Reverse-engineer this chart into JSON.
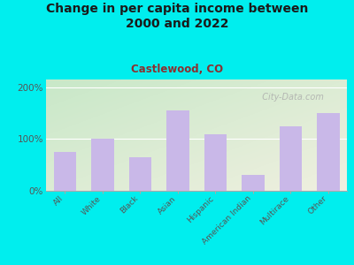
{
  "title": "Change in per capita income between\n2000 and 2022",
  "subtitle": "Castlewood, CO",
  "categories": [
    "All",
    "White",
    "Black",
    "Asian",
    "Hispanic",
    "American Indian",
    "Multirace",
    "Other"
  ],
  "values": [
    75,
    100,
    65,
    155,
    110,
    30,
    125,
    150
  ],
  "bar_color": "#c9b8e8",
  "background_outer": "#00EEEE",
  "background_plot_top_left": "#c8e8c8",
  "background_plot_bottom_right": "#f0f0e0",
  "title_color": "#1a1a1a",
  "subtitle_color": "#8b3030",
  "tick_label_color": "#555555",
  "ytick_labels": [
    "0%",
    "100%",
    "200%"
  ],
  "ytick_values": [
    0,
    100,
    200
  ],
  "ylim": [
    0,
    215
  ],
  "watermark": "  City-Data.com",
  "title_fontsize": 10,
  "subtitle_fontsize": 8.5,
  "watermark_fontsize": 7
}
